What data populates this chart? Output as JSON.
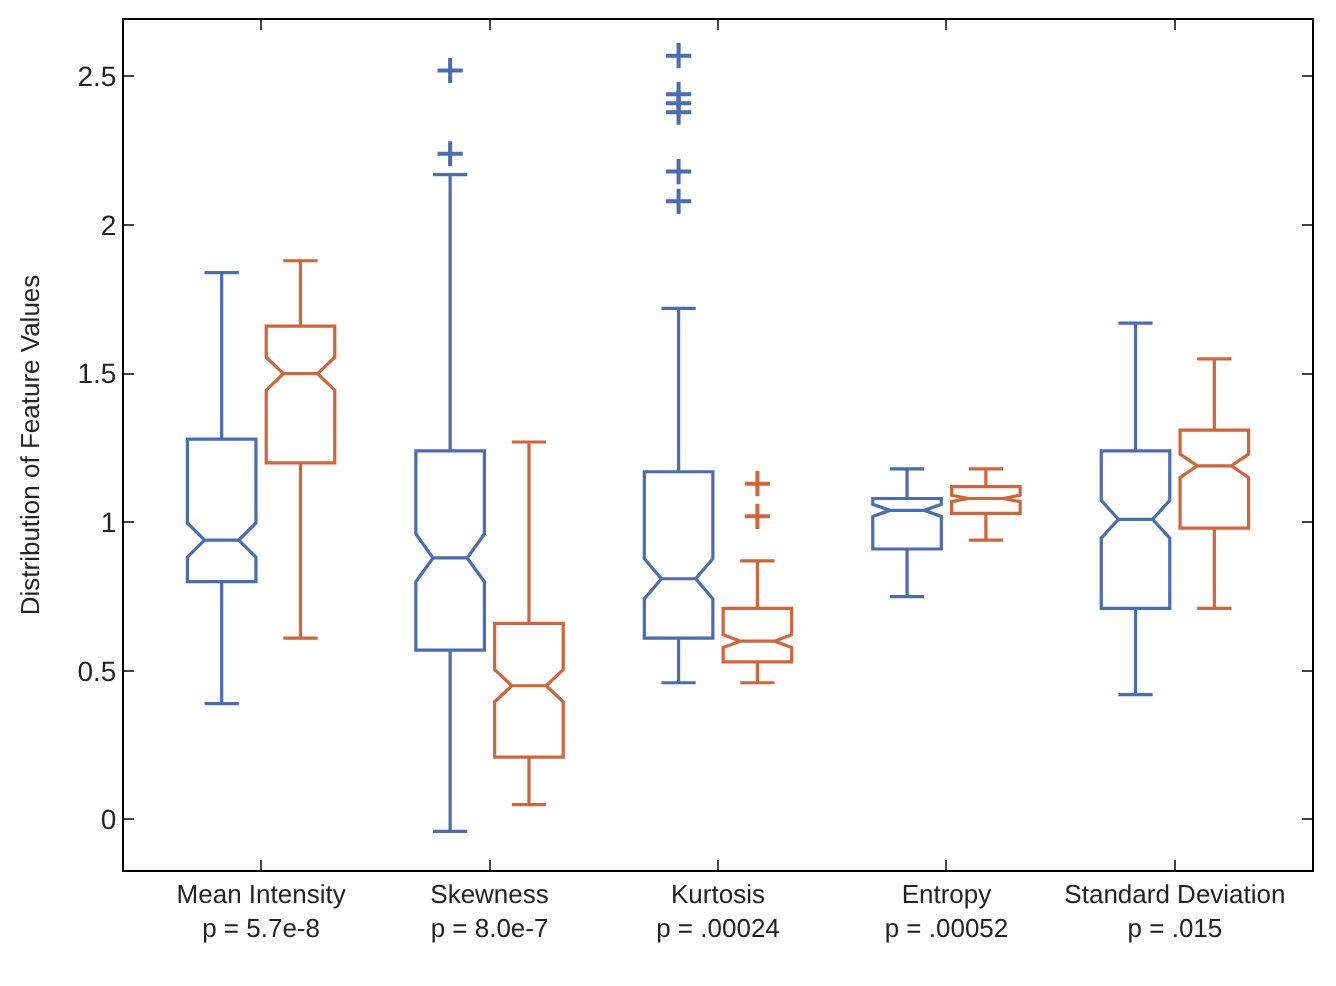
{
  "chart_data": {
    "type": "box",
    "ylabel": "Distribution of Feature Values",
    "categories": [
      "Mean Intensity\np = 5.7e-8",
      "Skewness\np = 8.0e-7",
      "Kurtosis\np = .00024",
      "Entropy\np = .00052",
      "Standard Deviation\np = .015"
    ],
    "ylim": [
      -0.17,
      2.69
    ],
    "yticks": [
      0,
      0.5,
      1,
      1.5,
      2,
      2.5
    ],
    "marker": "cross",
    "series": [
      {
        "color": "#4a6cb3",
        "boxes": [
          {
            "low": 0.39,
            "q1": 0.8,
            "median": 0.94,
            "q3": 1.28,
            "high": 1.84
          },
          {
            "low": -0.04,
            "q1": 0.57,
            "median": 0.88,
            "q3": 1.24,
            "high": 2.17,
            "outliers": [
              2.24,
              2.52
            ]
          },
          {
            "low": 0.46,
            "q1": 0.61,
            "median": 0.81,
            "q3": 1.17,
            "high": 1.72,
            "outliers": [
              2.08,
              2.18,
              2.38,
              2.41,
              2.44,
              2.57
            ]
          },
          {
            "low": 0.75,
            "q1": 0.91,
            "median": 1.04,
            "q3": 1.08,
            "high": 1.18
          },
          {
            "low": 0.42,
            "q1": 0.71,
            "median": 1.01,
            "q3": 1.24,
            "high": 1.67
          }
        ]
      },
      {
        "color": "#d2643a",
        "boxes": [
          {
            "low": 0.61,
            "q1": 1.2,
            "median": 1.5,
            "q3": 1.66,
            "high": 1.88
          },
          {
            "low": 0.05,
            "q1": 0.21,
            "median": 0.45,
            "q3": 0.66,
            "high": 1.27
          },
          {
            "low": 0.46,
            "q1": 0.53,
            "median": 0.6,
            "q3": 0.71,
            "high": 0.87,
            "outliers": [
              1.02,
              1.13
            ]
          },
          {
            "low": 0.94,
            "q1": 1.03,
            "median": 1.08,
            "q3": 1.12,
            "high": 1.18
          },
          {
            "low": 0.71,
            "q1": 0.98,
            "median": 1.19,
            "q3": 1.31,
            "high": 1.55
          }
        ]
      }
    ]
  }
}
